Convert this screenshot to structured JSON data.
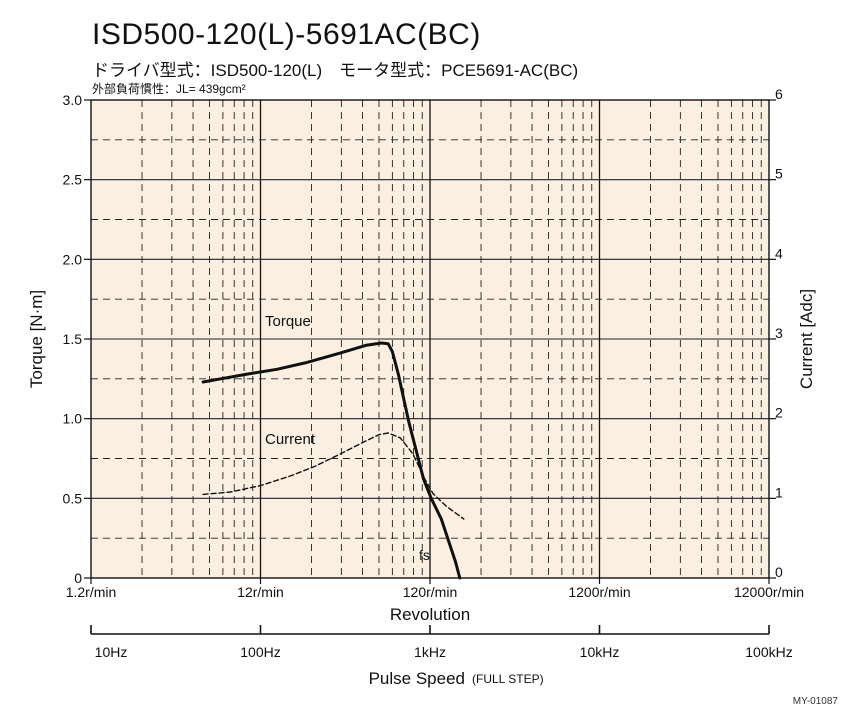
{
  "header": {
    "title": "ISD500-120(L)-5691AC(BC)",
    "subtitle": "ドライバ型式：ISD500-120(L)　モータ型式：PCE5691-AC(BC)",
    "inertia": "外部負荷慣性：JL= 439gcm²"
  },
  "footer": {
    "code": "MY-01087"
  },
  "chart_data": {
    "type": "line",
    "xscale": "log",
    "xlabel": "Revolution",
    "x_ticks": [
      {
        "value": 1.2,
        "label": "1.2r/min"
      },
      {
        "value": 12,
        "label": "12r/min"
      },
      {
        "value": 120,
        "label": "120r/min"
      },
      {
        "value": 1200,
        "label": "1200r/min"
      },
      {
        "value": 12000,
        "label": "12000r/min"
      }
    ],
    "xlim": [
      1.2,
      12000
    ],
    "ylabel_left": "Torque [N·m]",
    "ylim_left": [
      0,
      3.0
    ],
    "y_ticks_left": [
      "0",
      "0.5",
      "1.0",
      "1.5",
      "2.0",
      "2.5",
      "3.0"
    ],
    "ylabel_right": "Current [Adc]",
    "ylim_right": [
      0,
      6
    ],
    "y_ticks_right": [
      "0",
      "1",
      "2",
      "3",
      "4",
      "5",
      "6"
    ],
    "grid": true,
    "background": "#fbefe1",
    "series": [
      {
        "name": "Torque",
        "axis": "left",
        "style": "solid",
        "x": [
          5.5,
          7,
          10,
          15,
          22,
          35,
          50,
          62,
          68,
          72,
          78,
          90,
          110,
          122,
          140,
          170
        ],
        "y": [
          1.23,
          1.25,
          1.28,
          1.31,
          1.35,
          1.41,
          1.46,
          1.475,
          1.47,
          1.42,
          1.28,
          0.98,
          0.62,
          0.5,
          0.37,
          0.1
        ]
      },
      {
        "name": "Current",
        "axis": "right",
        "style": "dashed",
        "x": [
          5.5,
          8,
          12,
          18,
          25,
          35,
          48,
          60,
          68,
          80,
          95,
          112,
          125,
          150,
          190
        ],
        "y": [
          1.05,
          1.08,
          1.16,
          1.28,
          1.4,
          1.55,
          1.7,
          1.8,
          1.82,
          1.76,
          1.56,
          1.24,
          1.06,
          0.9,
          0.74
        ]
      },
      {
        "name": "fs",
        "axis": "left",
        "style": "solid",
        "x": [
          170,
          180
        ],
        "y": [
          0.1,
          0.0
        ]
      }
    ],
    "annotations": [
      "Torque",
      "Current",
      "fs"
    ],
    "secondary_axis": {
      "label": "Pulse Speed",
      "label_suffix": "(FULL STEP)",
      "ticks": [
        "10Hz",
        "100Hz",
        "1kHz",
        "10kHz",
        "100kHz"
      ]
    }
  }
}
